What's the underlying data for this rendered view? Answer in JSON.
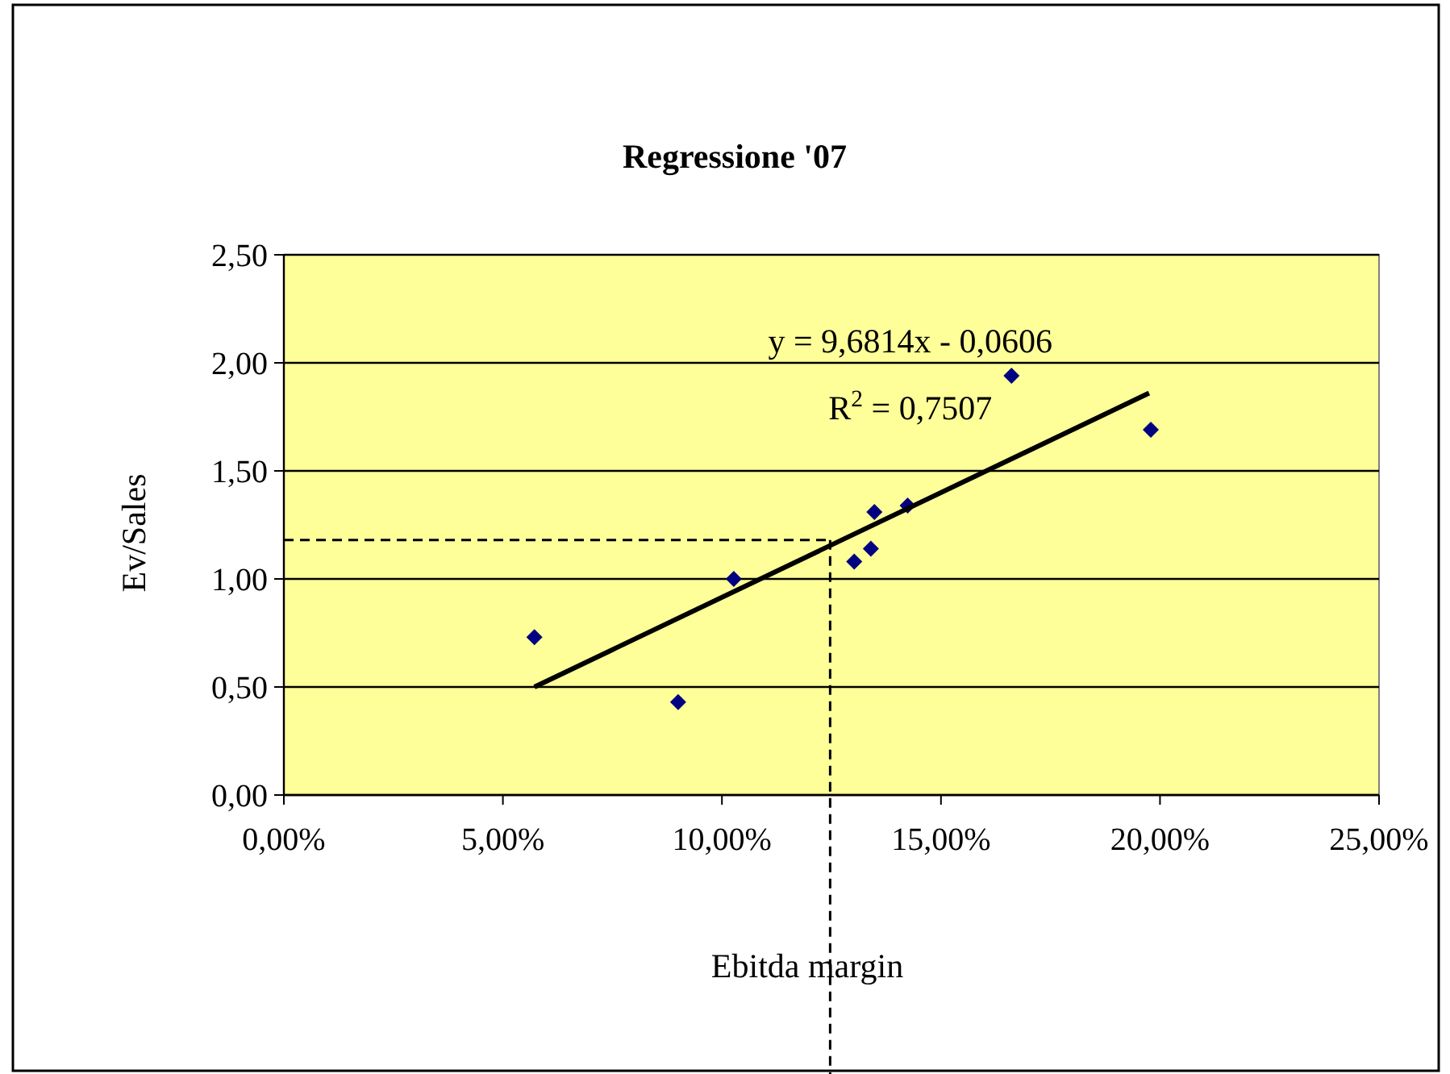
{
  "chart_data": {
    "type": "scatter",
    "title": "Regressione '07",
    "xlabel": "Ebitda margin",
    "ylabel": "Ev/Sales",
    "x": [
      5.72,
      9.0,
      10.27,
      13.02,
      13.4,
      13.48,
      14.24,
      16.61,
      19.79
    ],
    "series": [
      {
        "color": "#000080",
        "marker": "diamond",
        "values": [
          0.73,
          0.43,
          1.0,
          1.08,
          1.14,
          1.31,
          1.34,
          1.94,
          1.69
        ]
      },
      {
        "type": "line",
        "color": "#000000",
        "marker": "none",
        "line_style": "solid",
        "x": [
          5.72,
          19.75
        ],
        "values": [
          0.5,
          1.86
        ]
      }
    ],
    "xlim": [
      0,
      25
    ],
    "xticks": [
      {
        "value": 0,
        "label": "0,00%"
      },
      {
        "value": 5,
        "label": "5,00%"
      },
      {
        "value": 10,
        "label": "10,00%"
      },
      {
        "value": 15,
        "label": "15,00%"
      },
      {
        "value": 20,
        "label": "20,00%"
      },
      {
        "value": 25,
        "label": "25,00%"
      }
    ],
    "ylim": [
      0,
      2.5
    ],
    "yticks": [
      {
        "value": 0,
        "label": "0,00"
      },
      {
        "value": 0.5,
        "label": "0,50"
      },
      {
        "value": 1,
        "label": "1,00"
      },
      {
        "value": 1.5,
        "label": "1,50"
      },
      {
        "value": 2,
        "label": "2,00"
      },
      {
        "value": 2.5,
        "label": "2,50"
      }
    ],
    "grid": "y",
    "ref_lines": [
      {
        "axis": "x",
        "value": 12.47,
        "color": "#000000",
        "line_style": "dashed"
      },
      {
        "axis": "y",
        "value": 1.18,
        "color": "#000000",
        "line_style": "dashed"
      }
    ],
    "annotations": [
      "y = 9,6814x - 0,0606",
      "R$^{2}$ = 0,7507"
    ]
  }
}
